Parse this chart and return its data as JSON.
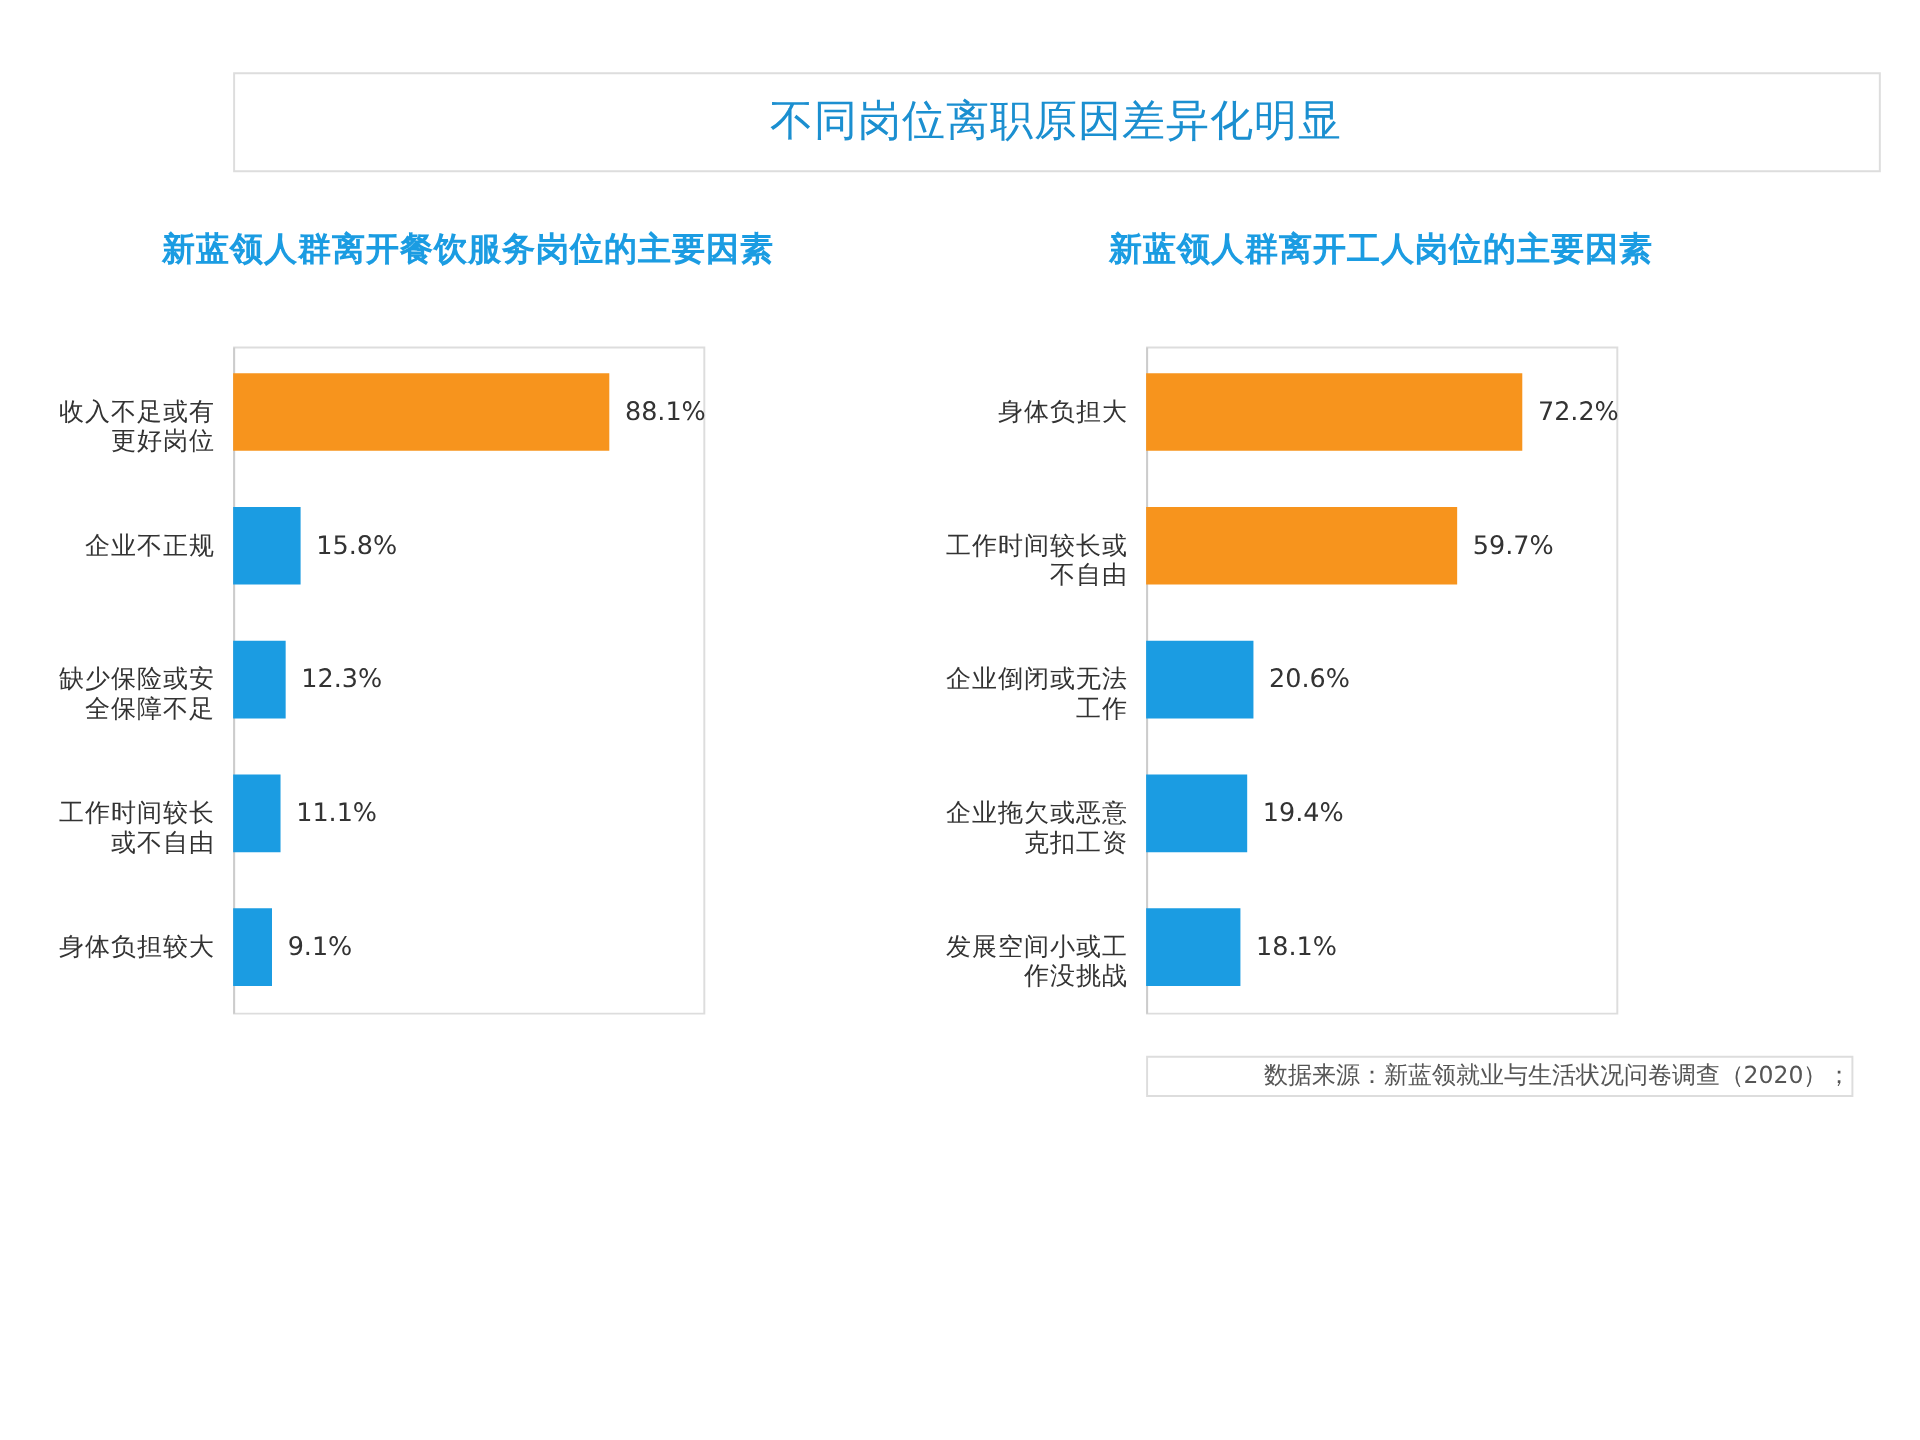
{
  "chart_data": [
    {
      "type": "other",
      "title": "不同岗位离职原因差异化明显"
    },
    {
      "type": "bar",
      "orientation": "horizontal",
      "title": "新蓝领人群离开餐饮服务岗位的主要因素",
      "categories": [
        "收入不足或有更好岗位",
        "企业不正规",
        "缺少保险或安全保障不足",
        "工作时间较长或不自由",
        "身体负担较大"
      ],
      "values": [
        88.1,
        15.8,
        12.3,
        11.1,
        9.1
      ],
      "colors": [
        "#f7941d",
        "#1b9ce2",
        "#1b9ce2",
        "#1b9ce2",
        "#1b9ce2"
      ],
      "value_labels": [
        "88.1%",
        "15.8%",
        "12.3%",
        "11.1%",
        "9.1%"
      ],
      "grid": false,
      "tick_labels": "y"
    },
    {
      "type": "bar",
      "orientation": "horizontal",
      "title": "新蓝领人群离开工人岗位的主要因素",
      "categories": [
        "身体负担大",
        "工作时间较长或不自由",
        "企业倒闭或无法工作",
        "企业拖欠或恶意克扣工资",
        "发展空间小或工作没挑战"
      ],
      "values": [
        72.2,
        59.7,
        20.6,
        19.4,
        18.1
      ],
      "colors": [
        "#f7941d",
        "#f7941d",
        "#1b9ce2",
        "#1b9ce2",
        "#1b9ce2"
      ],
      "value_labels": [
        "72.2%",
        "59.7%",
        "20.6%",
        "19.4%",
        "18.1%"
      ],
      "grid": false,
      "tick_labels": "y",
      "annotations": [
        "数据来源：新蓝领就业与生活状况问卷调查（2020）；"
      ]
    }
  ]
}
